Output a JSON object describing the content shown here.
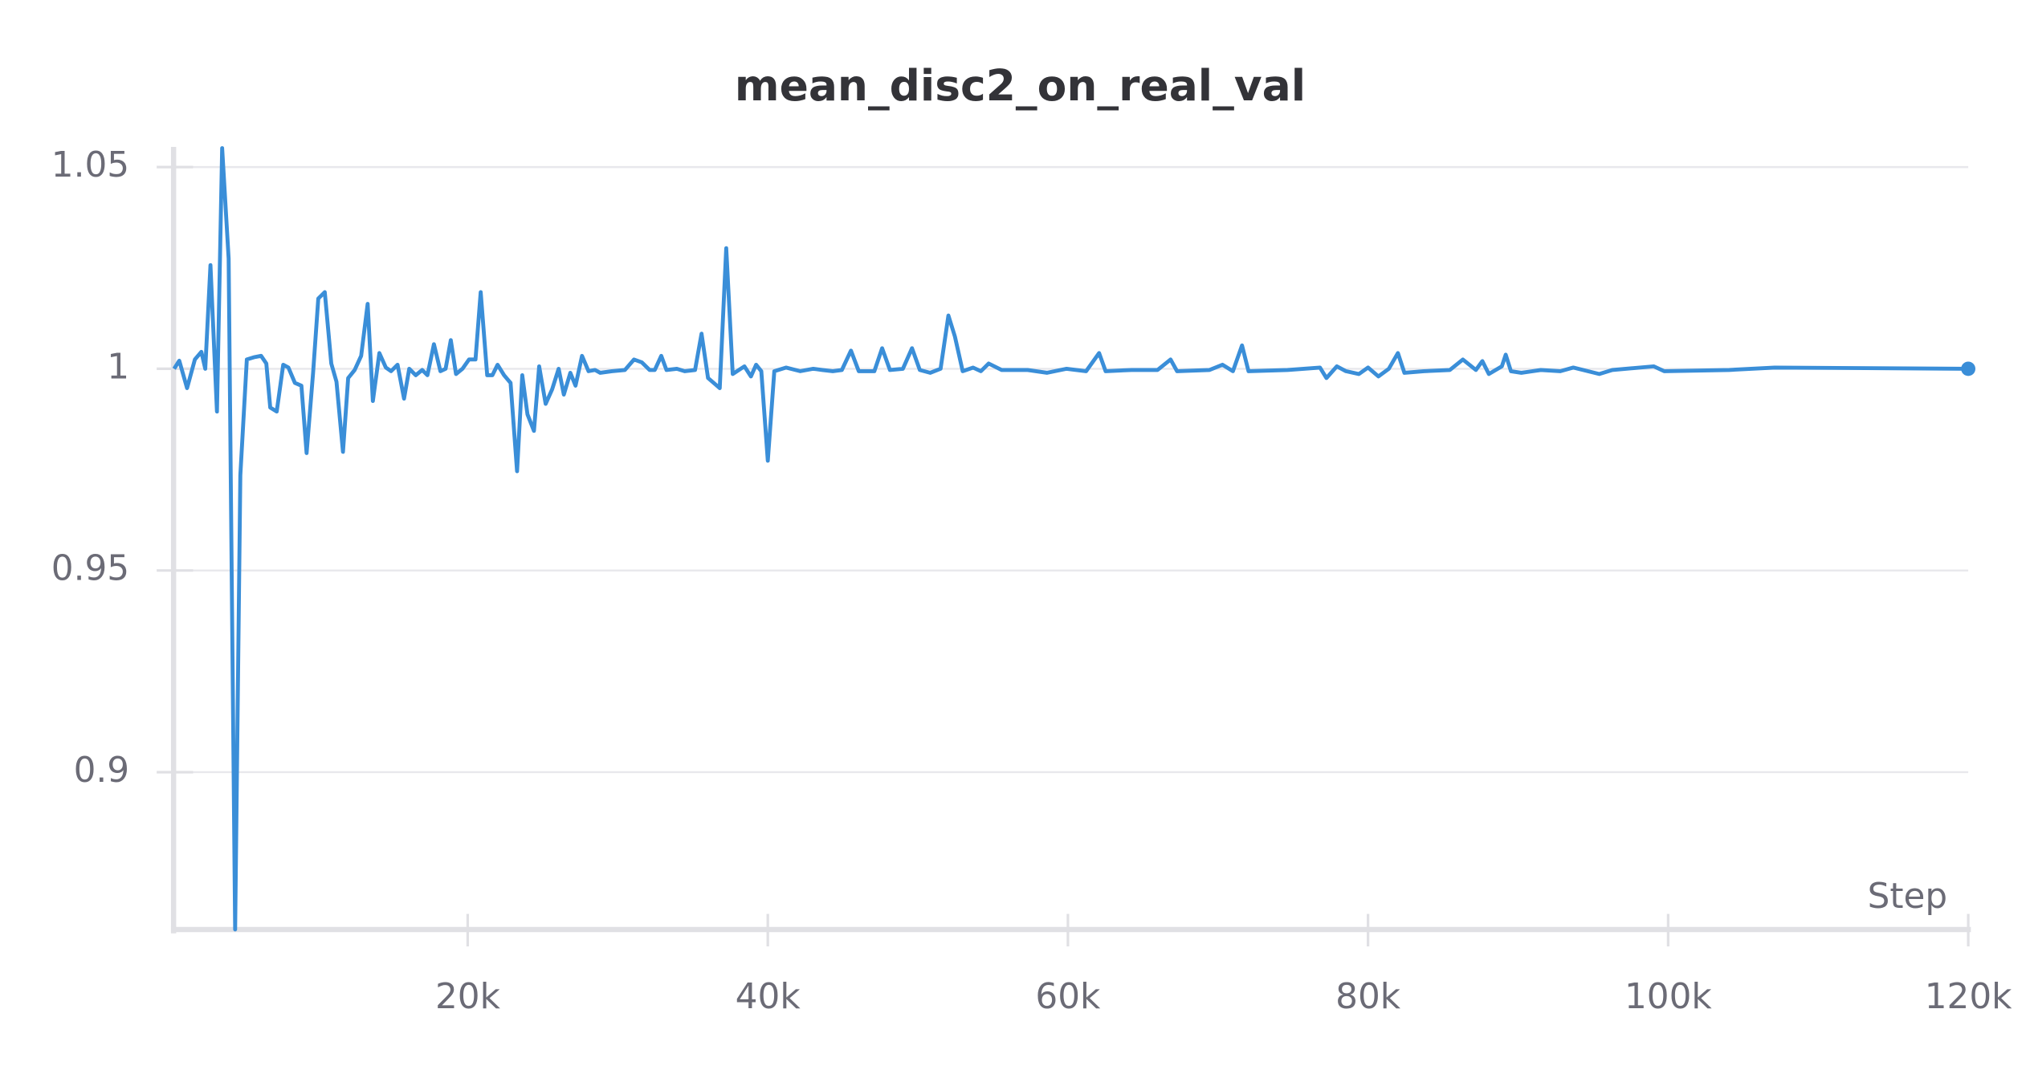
{
  "chart_data": {
    "type": "line",
    "title": "mean_disc2_on_real_val",
    "x_label": "Step",
    "color": "#3a8ed8",
    "x": [
      433,
      779,
      1299,
      1818,
      2251,
      2511,
      2857,
      3290,
      3636,
      4069,
      4502,
      4848,
      5281,
      5801,
      6234,
      6580,
      6840,
      7273,
      7706,
      8052,
      8485,
      8918,
      9264,
      9697,
      10043,
      10476,
      10909,
      11255,
      11688,
      12034,
      12468,
      12900,
      13333,
      13680,
      14113,
      14545,
      14892,
      15325,
      15758,
      16104,
      16537,
      16970,
      17316,
      17749,
      18182,
      18528,
      18874,
      19221,
      19654,
      20087,
      20520,
      20866,
      21299,
      21645,
      21991,
      22424,
      22857,
      23290,
      23636,
      23983,
      24416,
      24762,
      25195,
      25628,
      26061,
      26407,
      26840,
      27186,
      27619,
      28052,
      28485,
      28831,
      29610,
      30476,
      31082,
      31602,
      32121,
      32468,
      32900,
      33247,
      33939,
      34459,
      35152,
      35584,
      36017,
      36797,
      37229,
      37662,
      38442,
      38874,
      39221,
      39567,
      40000,
      40433,
      41212,
      42165,
      43030,
      43636,
      44329,
      44935,
      45541,
      46061,
      47100,
      47619,
      48139,
      49004,
      49610,
      50130,
      50823,
      51515,
      52035,
      52468,
      52987,
      53680,
      54200,
      54719,
      55584,
      57316,
      58615,
      59913,
      61212,
      62078,
      62511,
      64242,
      65974,
      66840,
      67273,
      69437,
      70303,
      70996,
      71602,
      72035,
      74632,
      76797,
      77229,
      77922,
      78528,
      79394,
      80000,
      80693,
      81385,
      81991,
      82424,
      83723,
      85455,
      86320,
      87186,
      87619,
      88052,
      88918,
      89177,
      89524,
      90216,
      91515,
      92814,
      93680,
      95411,
      96277,
      99048,
      99740,
      104069,
      107100,
      120000
    ],
    "values": [
      1.0,
      1.002,
      0.9952,
      1.0023,
      1.0042,
      1.0,
      1.0257,
      0.9894,
      1.0547,
      1.0273,
      0.861,
      0.9736,
      1.0023,
      1.0029,
      1.0032,
      1.0013,
      0.9904,
      0.9894,
      1.001,
      1.0003,
      0.9965,
      0.9958,
      0.9791,
      0.999,
      1.0174,
      1.019,
      1.0013,
      0.9968,
      0.9794,
      0.9977,
      0.9997,
      1.0032,
      1.0161,
      0.992,
      1.0039,
      1.0003,
      0.9994,
      1.001,
      0.9926,
      1.0,
      0.9984,
      0.9997,
      0.9984,
      1.0061,
      0.9994,
      1.0,
      1.0071,
      0.9987,
      1.0,
      1.0023,
      1.0023,
      1.019,
      0.9984,
      0.9984,
      1.001,
      0.9984,
      0.9965,
      0.9746,
      0.9984,
      0.9887,
      0.9846,
      1.0006,
      0.9913,
      0.9949,
      1.0,
      0.9936,
      0.999,
      0.9958,
      1.0032,
      0.9994,
      0.9997,
      0.999,
      0.9994,
      0.9997,
      1.0023,
      1.0016,
      0.9997,
      0.9997,
      1.0032,
      0.9997,
      1.0,
      0.9994,
      0.9997,
      1.0087,
      0.9977,
      0.9952,
      1.0299,
      0.9987,
      1.0006,
      0.9981,
      1.001,
      0.9994,
      0.9772,
      0.9994,
      1.0003,
      0.9994,
      1.0,
      0.9997,
      0.9994,
      0.9997,
      1.0045,
      0.9994,
      0.9994,
      1.0051,
      0.9997,
      1.0,
      1.0051,
      0.9997,
      0.999,
      1.0,
      1.0132,
      1.008,
      0.9994,
      1.0003,
      0.9994,
      1.0013,
      0.9997,
      0.9997,
      0.999,
      1.0,
      0.9994,
      1.0039,
      0.9994,
      0.9997,
      0.9997,
      1.0023,
      0.9994,
      0.9997,
      1.001,
      0.9994,
      1.0058,
      0.9994,
      0.9997,
      1.0003,
      0.9977,
      1.0006,
      0.9994,
      0.9987,
      1.0003,
      0.9981,
      1.0,
      1.0039,
      0.999,
      0.9994,
      0.9997,
      1.0023,
      0.9997,
      1.0019,
      0.9987,
      1.0006,
      1.0035,
      0.9994,
      0.999,
      0.9997,
      0.9994,
      1.0003,
      0.9987,
      0.9997,
      1.0006,
      0.9994,
      0.9997,
      1.0003,
      1.0
    ],
    "xlim": [
      400,
      120000
    ],
    "ylim": [
      0.861,
      1.055
    ],
    "xticks": [
      {
        "value": 20000,
        "label": "20k"
      },
      {
        "value": 40000,
        "label": "40k"
      },
      {
        "value": 60000,
        "label": "60k"
      },
      {
        "value": 80000,
        "label": "80k"
      },
      {
        "value": 100000,
        "label": "100k"
      },
      {
        "value": 120000,
        "label": "120k"
      }
    ],
    "yticks": [
      0.9,
      0.95,
      1,
      1.05
    ],
    "grid": true
  }
}
